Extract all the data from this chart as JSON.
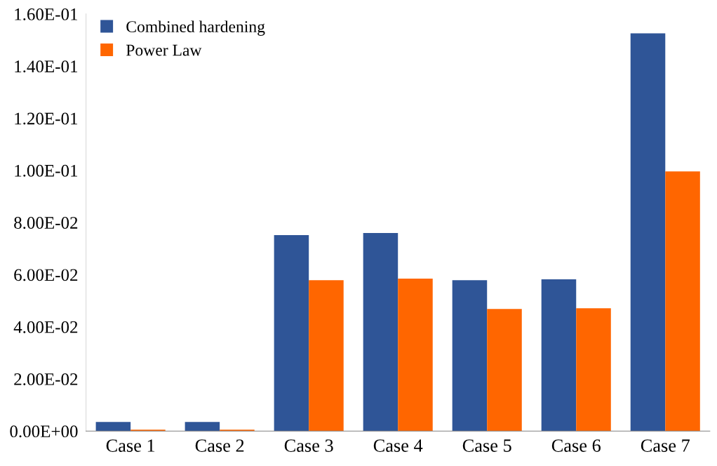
{
  "chart_data": {
    "type": "bar",
    "categories": [
      "Case 1",
      "Case 2",
      "Case 3",
      "Case 4",
      "Case 5",
      "Case 6",
      "Case 7"
    ],
    "series": [
      {
        "name": "Combined hardening",
        "color": "#2f5597",
        "values": [
          0.0035,
          0.0035,
          0.0752,
          0.076,
          0.0579,
          0.0582,
          0.1526
        ]
      },
      {
        "name": "Power Law",
        "color": "#ff6600",
        "values": [
          0.0005,
          0.0005,
          0.0579,
          0.0585,
          0.0468,
          0.0471,
          0.0996
        ]
      }
    ],
    "ylim": [
      0,
      0.16
    ],
    "yticks": [
      {
        "value": 0,
        "label": "0.00E+00"
      },
      {
        "value": 0.02,
        "label": "2.00E-02"
      },
      {
        "value": 0.04,
        "label": "4.00E-02"
      },
      {
        "value": 0.06,
        "label": "6.00E-02"
      },
      {
        "value": 0.08,
        "label": "8.00E-02"
      },
      {
        "value": 0.1,
        "label": "1.00E-01"
      },
      {
        "value": 0.12,
        "label": "1.20E-01"
      },
      {
        "value": 0.14,
        "label": "1.40E-01"
      },
      {
        "value": 0.16,
        "label": "1.60E-01"
      }
    ],
    "grid": false,
    "legend": "top left"
  }
}
